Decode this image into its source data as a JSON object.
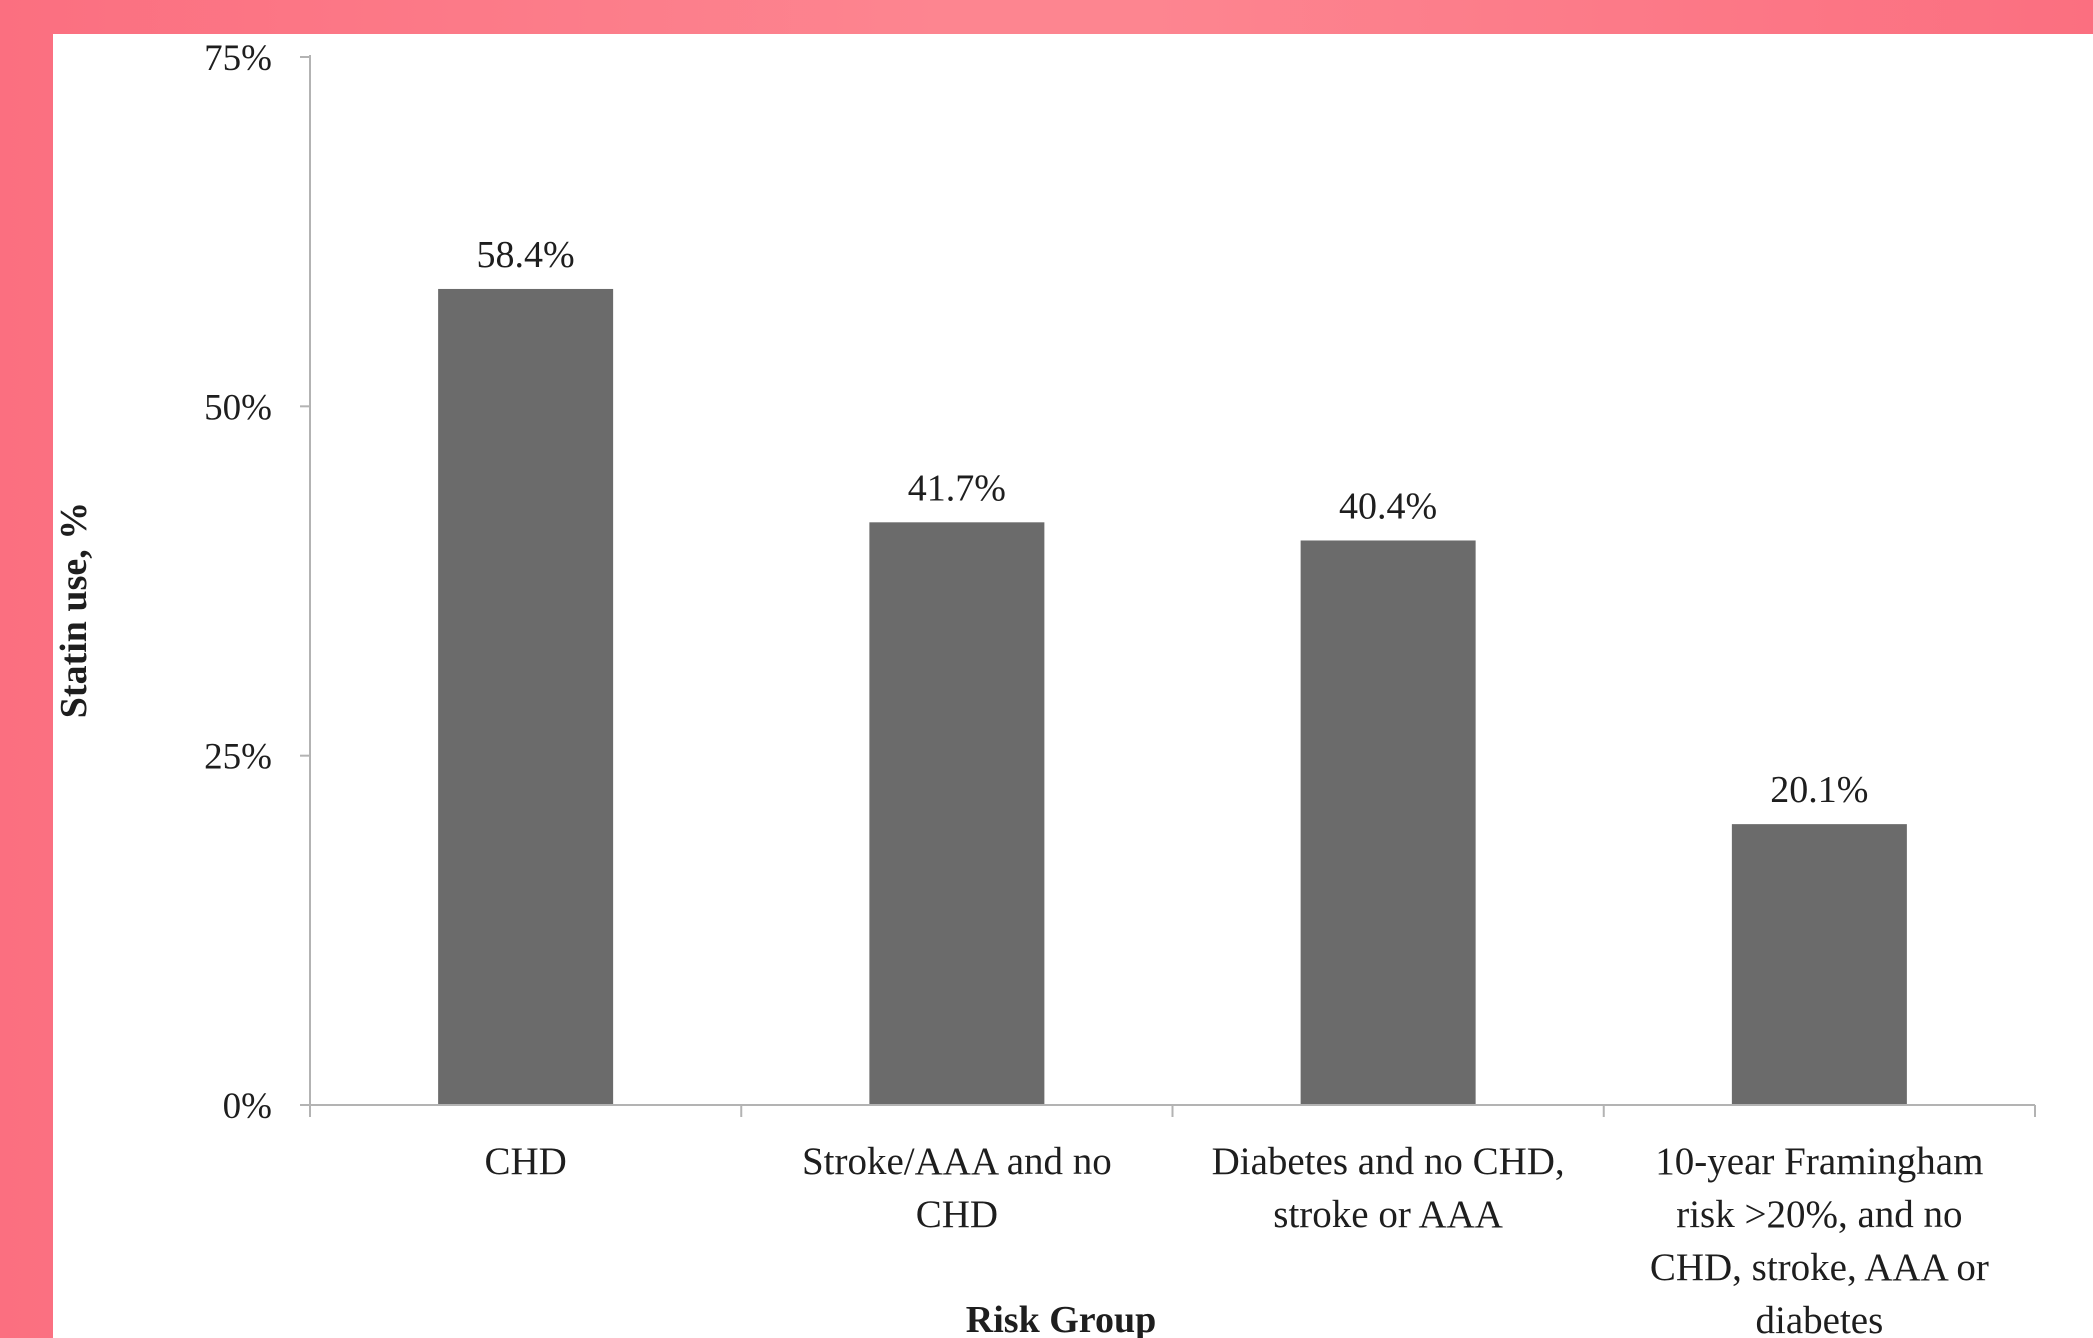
{
  "chart_data": {
    "type": "bar",
    "categories": [
      [
        "CHD"
      ],
      [
        "Stroke/AAA and no",
        "CHD"
      ],
      [
        "Diabetes and no CHD,",
        "stroke or AAA"
      ],
      [
        "10-year Framingham",
        "risk >20%, and no",
        "CHD, stroke, AAA or",
        "diabetes"
      ]
    ],
    "values": [
      58.4,
      41.7,
      40.4,
      20.1
    ],
    "data_labels": [
      "58.4%",
      "41.7%",
      "40.4%",
      "20.1%"
    ],
    "xlabel": "Risk Group",
    "ylabel": "Statin use, %",
    "ylim": [
      0,
      75
    ],
    "yticks": [
      {
        "value": 0,
        "label": "0%"
      },
      {
        "value": 25,
        "label": "25%"
      },
      {
        "value": 50,
        "label": "50%"
      },
      {
        "value": 75,
        "label": "75%"
      }
    ],
    "grid": false,
    "bar_color": "#6b6b6b",
    "axis_color": "#b3b3b3",
    "background_color": "#fd8590"
  }
}
